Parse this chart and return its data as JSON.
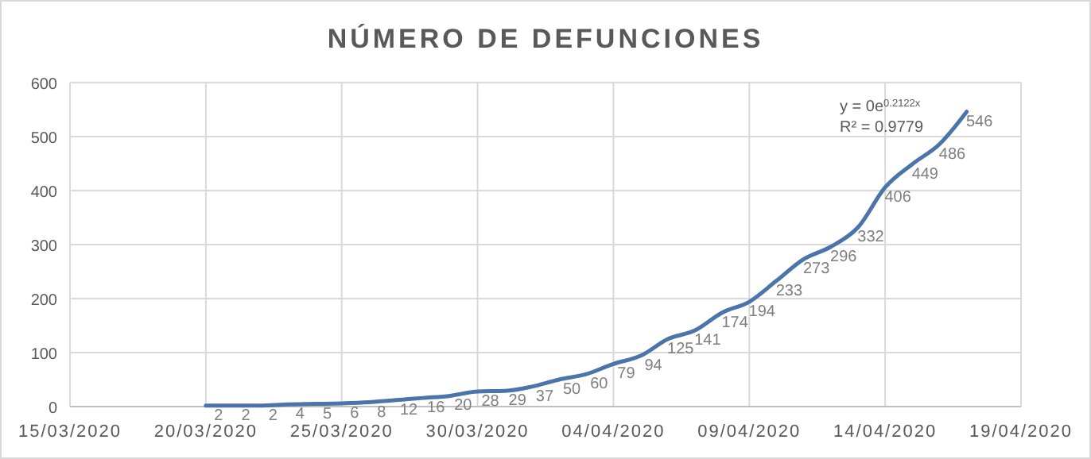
{
  "chart_data": {
    "type": "line",
    "title": "NÚMERO DE DEFUNCIONES",
    "x": [
      "2020-03-20",
      "2020-03-21",
      "2020-03-22",
      "2020-03-23",
      "2020-03-24",
      "2020-03-25",
      "2020-03-26",
      "2020-03-27",
      "2020-03-28",
      "2020-03-29",
      "2020-03-30",
      "2020-03-31",
      "2020-04-01",
      "2020-04-02",
      "2020-04-03",
      "2020-04-04",
      "2020-04-05",
      "2020-04-06",
      "2020-04-07",
      "2020-04-08",
      "2020-04-09",
      "2020-04-10",
      "2020-04-11",
      "2020-04-12",
      "2020-04-13",
      "2020-04-14",
      "2020-04-15",
      "2020-04-16",
      "2020-04-17"
    ],
    "series": [
      {
        "color": "#4a74aa",
        "values": [
          2,
          2,
          2,
          4,
          5,
          6,
          8,
          12,
          16,
          20,
          28,
          29,
          37,
          50,
          60,
          79,
          94,
          125,
          141,
          174,
          194,
          233,
          273,
          296,
          332,
          406,
          449,
          486,
          546
        ]
      }
    ],
    "data_labels": true,
    "xlim": [
      "2020-03-15",
      "2020-04-19"
    ],
    "xticks": [
      {
        "value": "2020-03-15",
        "label": "15/03/2020"
      },
      {
        "value": "2020-03-20",
        "label": "20/03/2020"
      },
      {
        "value": "2020-03-25",
        "label": "25/03/2020"
      },
      {
        "value": "2020-03-30",
        "label": "30/03/2020"
      },
      {
        "value": "2020-04-04",
        "label": "04/04/2020"
      },
      {
        "value": "2020-04-09",
        "label": "09/04/2020"
      },
      {
        "value": "2020-04-14",
        "label": "14/04/2020"
      },
      {
        "value": "2020-04-19",
        "label": "19/04/2020"
      }
    ],
    "ylim": [
      0,
      600
    ],
    "yticks": [
      0,
      100,
      200,
      300,
      400,
      500,
      600
    ],
    "grid": true,
    "marker": "none",
    "line_style": "solid",
    "annotations": [
      "y = 0e$^{0.2122x}$",
      "R² = 0.9779"
    ]
  }
}
